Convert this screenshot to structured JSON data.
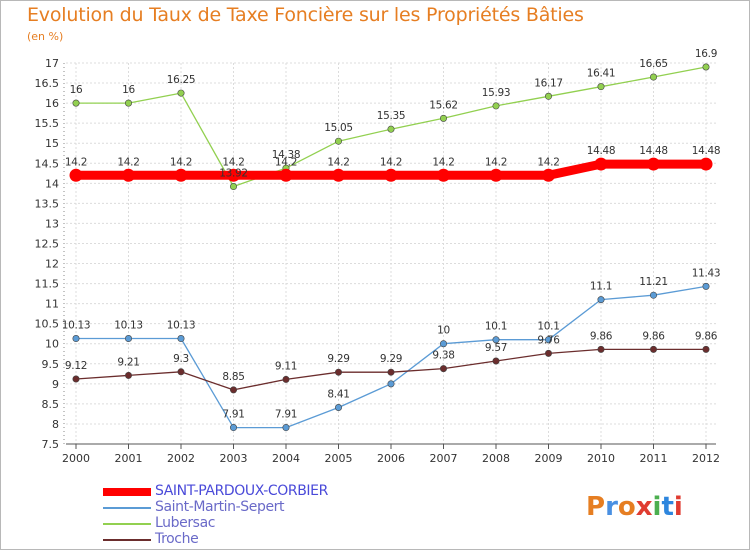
{
  "title": "Evolution du Taux de Taxe Foncière sur les Propriétés Bâties",
  "unit": "(en %)",
  "logo": {
    "text": "Proxiti",
    "colors": [
      "#e67e22",
      "#4a90e2",
      "#e67e22",
      "#e03c31",
      "#4caf50",
      "#2e86de",
      "#e03c31"
    ]
  },
  "chart_data": {
    "type": "line",
    "title": "Evolution du Taux de Taxe Foncière sur les Propriétés Bâties",
    "ylabel": "(en %)",
    "xlabel": "",
    "ylim": [
      7.5,
      17
    ],
    "yticks": [
      "7.5",
      "8",
      "8.5",
      "9",
      "9.5",
      "10",
      "10.5",
      "11",
      "11.5",
      "12",
      "12.5",
      "13",
      "13.5",
      "14",
      "14.5",
      "15",
      "15.5",
      "16",
      "16.5",
      "17"
    ],
    "grid": true,
    "legend_position": "bottom-left",
    "x": [
      "2000",
      "2001",
      "2002",
      "2003",
      "2004",
      "2005",
      "2006",
      "2007",
      "2008",
      "2009",
      "2010",
      "2011",
      "2012"
    ],
    "series": [
      {
        "name": "SAINT-PARDOUX-CORBIER",
        "color": "#ff0000",
        "bold": true,
        "values": [
          14.2,
          14.2,
          14.2,
          14.2,
          14.2,
          14.2,
          14.2,
          14.2,
          14.2,
          14.2,
          14.48,
          14.48,
          14.48
        ],
        "labels": [
          "14.2",
          "14.2",
          "14.2",
          "14.2",
          "14.2",
          "14.2",
          "14.2",
          "14.2",
          "14.2",
          "14.2",
          "14.48",
          "14.48",
          "14.48"
        ]
      },
      {
        "name": "Saint-Martin-Sepert",
        "color": "#5b9bd5",
        "bold": false,
        "values": [
          10.13,
          10.13,
          10.13,
          7.91,
          7.91,
          8.41,
          9,
          10,
          10.1,
          10.1,
          11.1,
          11.21,
          11.43
        ],
        "labels": [
          "10.13",
          "10.13",
          "10.13",
          "7.91",
          "7.91",
          "8.41",
          "",
          "10",
          "10.1",
          "10.1",
          "11.1",
          "11.21",
          "11.43"
        ]
      },
      {
        "name": "Lubersac",
        "color": "#92d050",
        "bold": false,
        "values": [
          16,
          16,
          16.25,
          13.92,
          14.38,
          15.05,
          15.35,
          15.62,
          15.93,
          16.17,
          16.41,
          16.65,
          16.9
        ],
        "labels": [
          "16",
          "16",
          "16.25",
          "13.92",
          "14.38",
          "15.05",
          "15.35",
          "15.62",
          "15.93",
          "16.17",
          "16.41",
          "16.65",
          "16.9"
        ]
      },
      {
        "name": "Troche",
        "color": "#6b2d2d",
        "bold": false,
        "values": [
          9.12,
          9.21,
          9.3,
          8.85,
          9.11,
          9.29,
          9.29,
          9.38,
          9.57,
          9.76,
          9.86,
          9.86,
          9.86
        ],
        "labels": [
          "9.12",
          "9.21",
          "9.3",
          "8.85",
          "9.11",
          "9.29",
          "9.29",
          "9.38",
          "9.57",
          "9.76",
          "9.86",
          "9.86",
          "9.86"
        ]
      }
    ]
  }
}
